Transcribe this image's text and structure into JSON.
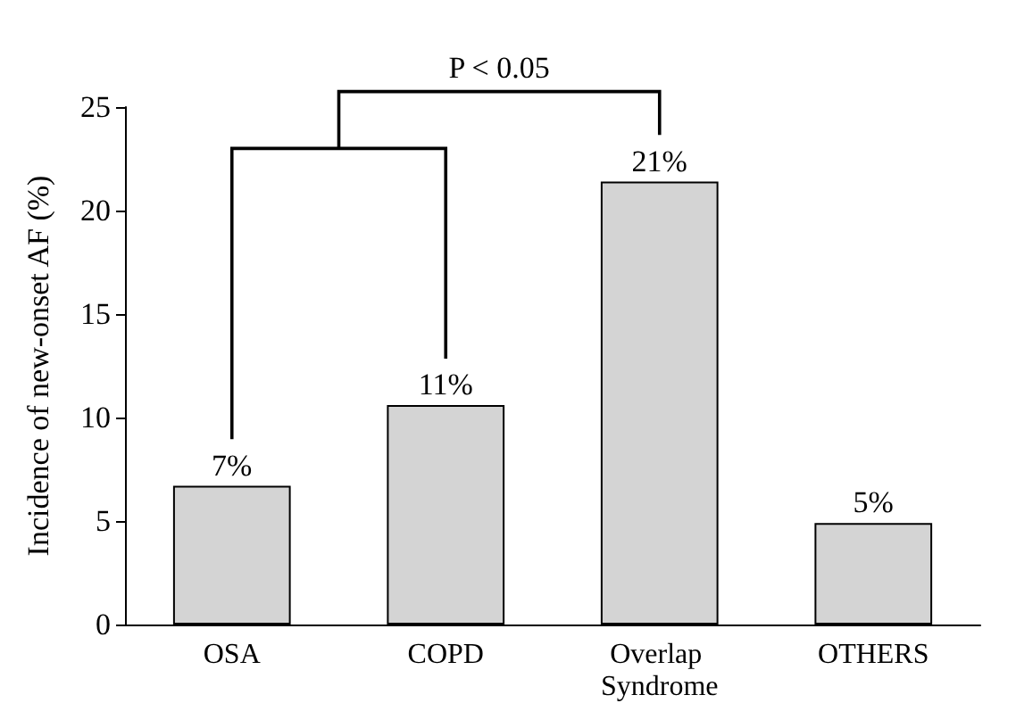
{
  "chart_data": {
    "type": "bar",
    "ylabel": "Incidence of new-onset AF (%)",
    "categories": [
      "OSA",
      "COPD",
      "Overlap Syndrome",
      "OTHERS"
    ],
    "values": [
      6.7,
      10.6,
      21.4,
      4.9
    ],
    "value_labels": [
      "7%",
      "11%",
      "21%",
      "5%"
    ],
    "color": "#d4d4d4",
    "ylim": [
      0,
      25
    ],
    "yticks": [
      0,
      5,
      10,
      15,
      20,
      25
    ],
    "grid": false,
    "annotations": [
      "P < 0.05"
    ]
  }
}
